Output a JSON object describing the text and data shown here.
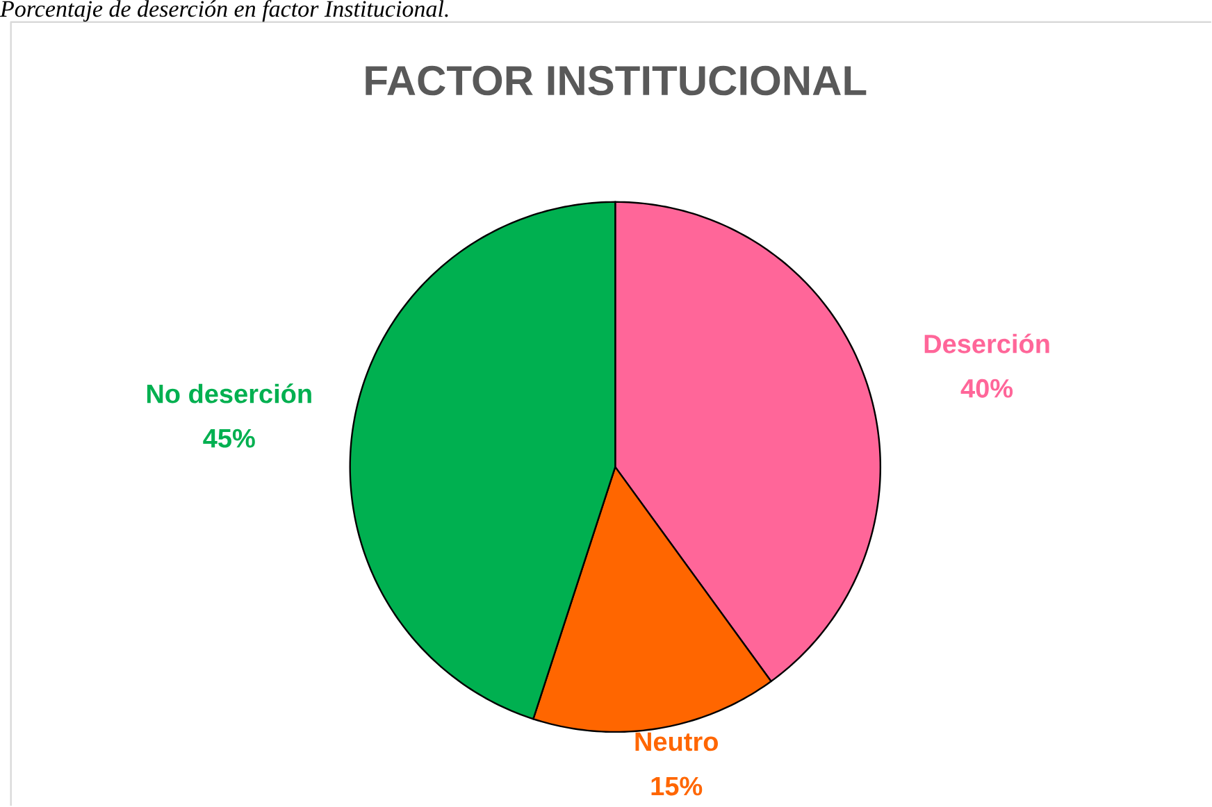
{
  "chart_data": {
    "type": "pie",
    "title": "FACTOR INSTITUCIONAL",
    "annotations": [
      "Porcentaje de deserción en factor Institucional."
    ],
    "categories": [
      "Deserción",
      "Neutro",
      "No deserción"
    ],
    "values": [
      40,
      15,
      45
    ],
    "colors": [
      "#ff6699",
      "#ff6600",
      "#00b050"
    ],
    "value_labels": [
      "40%",
      "15%",
      "45%"
    ]
  }
}
